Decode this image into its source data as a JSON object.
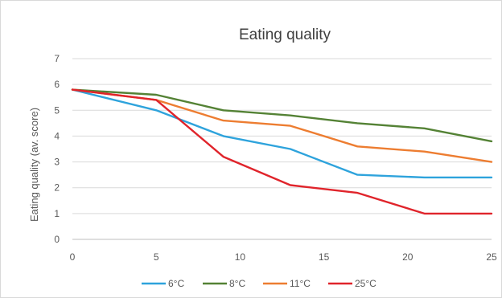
{
  "chart_data": {
    "type": "line",
    "title": "Eating quality",
    "xlabel": "",
    "ylabel": "Eating quality (av. score)",
    "x": [
      0,
      5,
      9,
      13,
      17,
      21,
      25
    ],
    "xlim": [
      0,
      25
    ],
    "xticks": [
      "0",
      "5",
      "10",
      "15",
      "20",
      "25"
    ],
    "xtick_values": [
      0,
      5,
      10,
      15,
      20,
      25
    ],
    "ylim": [
      0,
      7
    ],
    "yticks": [
      "0",
      "1",
      "2",
      "3",
      "4",
      "5",
      "6",
      "7"
    ],
    "ytick_values": [
      0,
      1,
      2,
      3,
      4,
      5,
      6,
      7
    ],
    "grid": true,
    "legend_position": "bottom",
    "series": [
      {
        "name": "6°C",
        "color": "#2ea3dc",
        "values": [
          5.8,
          5.0,
          4.0,
          3.5,
          2.5,
          2.4,
          2.4
        ]
      },
      {
        "name": "8°C",
        "color": "#548235",
        "values": [
          5.8,
          5.6,
          5.0,
          4.8,
          4.5,
          4.3,
          3.8
        ]
      },
      {
        "name": "11°C",
        "color": "#ed7d31",
        "values": [
          5.8,
          5.4,
          4.6,
          4.4,
          3.6,
          3.4,
          3.0
        ]
      },
      {
        "name": "25°C",
        "color": "#e0242b",
        "values": [
          5.8,
          5.4,
          3.2,
          2.1,
          1.8,
          1.0,
          1.0
        ]
      }
    ]
  }
}
